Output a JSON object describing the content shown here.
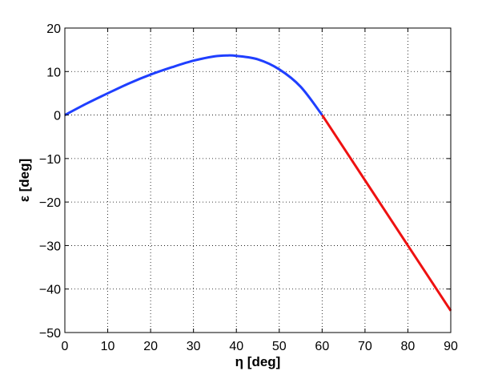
{
  "chart_data": {
    "type": "line",
    "title": "",
    "xlabel": "η [deg]",
    "ylabel": "ε [deg]",
    "xlim": [
      0,
      90
    ],
    "ylim": [
      -50,
      20
    ],
    "x_ticks": [
      0,
      10,
      20,
      30,
      40,
      50,
      60,
      70,
      80,
      90
    ],
    "y_ticks": [
      -50,
      -40,
      -30,
      -20,
      -10,
      0,
      10,
      20
    ],
    "x_tick_labels": [
      "0",
      "10",
      "20",
      "30",
      "40",
      "50",
      "60",
      "70",
      "80",
      "90"
    ],
    "y_tick_labels": [
      "−50",
      "−40",
      "−30",
      "−20",
      "−10",
      "0",
      "10",
      "20"
    ],
    "grid": true,
    "grid_style": "dotted",
    "legend": "none",
    "series": [
      {
        "color": "#1f3fff",
        "x": [
          0,
          5,
          10,
          15,
          20,
          25,
          30,
          35,
          38,
          40,
          45,
          50,
          55,
          60
        ],
        "y": [
          0,
          2.6,
          5.0,
          7.3,
          9.3,
          11.0,
          12.5,
          13.5,
          13.7,
          13.6,
          12.8,
          10.5,
          6.5,
          0
        ]
      },
      {
        "color": "#ee1111",
        "x": [
          60,
          70,
          80,
          90
        ],
        "y": [
          0,
          -15,
          -30,
          -45
        ]
      }
    ]
  }
}
